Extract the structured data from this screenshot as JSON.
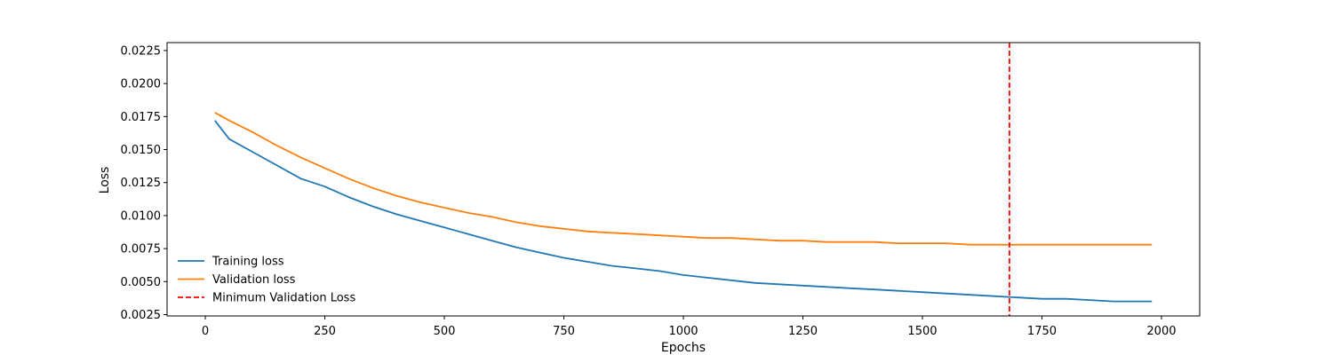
{
  "chart_data": {
    "type": "line",
    "title": "",
    "xlabel": "Epochs",
    "ylabel": "Loss",
    "xlim": [
      -80,
      2080
    ],
    "ylim": [
      0.0024,
      0.0231
    ],
    "x_ticks": [
      0,
      250,
      500,
      750,
      1000,
      1250,
      1500,
      1750,
      2000
    ],
    "x_tick_labels": [
      "0",
      "250",
      "500",
      "750",
      "1000",
      "1250",
      "1500",
      "1750",
      "2000"
    ],
    "y_ticks": [
      0.0025,
      0.005,
      0.0075,
      0.01,
      0.0125,
      0.015,
      0.0175,
      0.02,
      0.0225
    ],
    "y_tick_labels": [
      "0.0025",
      "0.0050",
      "0.0075",
      "0.0100",
      "0.0125",
      "0.0150",
      "0.0175",
      "0.0200",
      "0.0225"
    ],
    "grid": false,
    "legend_position": "lower-left",
    "series": [
      {
        "name": "Training loss",
        "color": "#1f77b4",
        "style": "solid",
        "x": [
          20,
          50,
          100,
          150,
          200,
          250,
          300,
          350,
          400,
          450,
          500,
          550,
          600,
          650,
          700,
          750,
          800,
          850,
          900,
          950,
          1000,
          1050,
          1100,
          1150,
          1200,
          1250,
          1300,
          1350,
          1400,
          1450,
          1500,
          1550,
          1600,
          1650,
          1700,
          1750,
          1800,
          1850,
          1900,
          1950,
          1980
        ],
        "y": [
          0.0172,
          0.0158,
          0.0148,
          0.0138,
          0.0128,
          0.0122,
          0.0114,
          0.0107,
          0.0101,
          0.0096,
          0.0091,
          0.0086,
          0.0081,
          0.0076,
          0.0072,
          0.0068,
          0.0065,
          0.0062,
          0.006,
          0.0058,
          0.0055,
          0.0053,
          0.0051,
          0.0049,
          0.0048,
          0.0047,
          0.0046,
          0.0045,
          0.0044,
          0.0043,
          0.0042,
          0.0041,
          0.004,
          0.0039,
          0.0038,
          0.0037,
          0.0037,
          0.0036,
          0.0035,
          0.0035,
          0.0035
        ]
      },
      {
        "name": "Validation loss",
        "color": "#ff7f0e",
        "style": "solid",
        "x": [
          20,
          50,
          100,
          150,
          200,
          250,
          300,
          350,
          400,
          450,
          500,
          550,
          600,
          650,
          700,
          750,
          800,
          850,
          900,
          950,
          1000,
          1050,
          1100,
          1150,
          1200,
          1250,
          1300,
          1350,
          1400,
          1450,
          1500,
          1550,
          1600,
          1650,
          1700,
          1750,
          1800,
          1850,
          1900,
          1950,
          1980
        ],
        "y": [
          0.0178,
          0.0172,
          0.0163,
          0.0153,
          0.0144,
          0.0136,
          0.0128,
          0.0121,
          0.0115,
          0.011,
          0.0106,
          0.0102,
          0.0099,
          0.0095,
          0.0092,
          0.009,
          0.0088,
          0.0087,
          0.0086,
          0.0085,
          0.0084,
          0.0083,
          0.0083,
          0.0082,
          0.0081,
          0.0081,
          0.008,
          0.008,
          0.008,
          0.0079,
          0.0079,
          0.0079,
          0.0078,
          0.0078,
          0.0078,
          0.0078,
          0.0078,
          0.0078,
          0.0078,
          0.0078,
          0.0078
        ]
      }
    ],
    "vlines": [
      {
        "name": "Minimum Validation Loss",
        "x": 1682,
        "color": "#ff0000",
        "style": "dashed"
      }
    ]
  }
}
